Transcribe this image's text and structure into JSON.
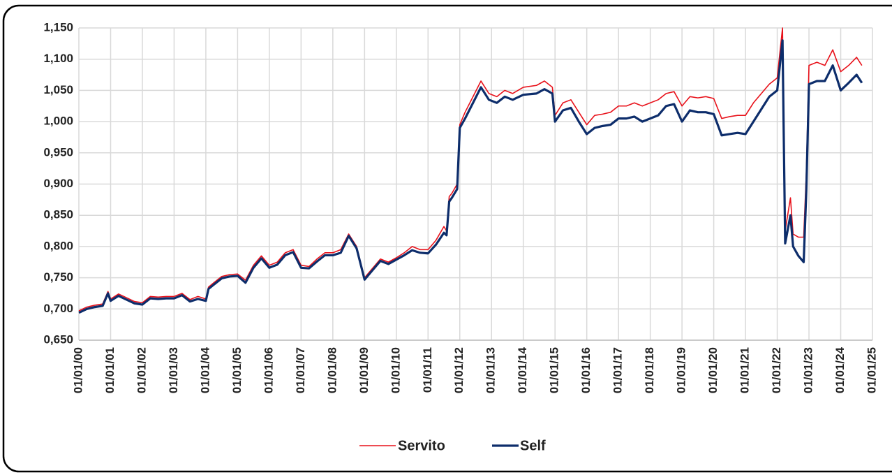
{
  "chart_data": {
    "type": "line",
    "x": [
      "01/01/00",
      "01/04/00",
      "01/07/00",
      "01/10/00",
      "01/12/00",
      "01/01/01",
      "01/04/01",
      "01/07/01",
      "01/10/01",
      "01/01/02",
      "01/04/02",
      "01/07/02",
      "01/10/02",
      "01/01/03",
      "01/04/03",
      "01/07/03",
      "01/10/03",
      "01/01/04",
      "01/02/04",
      "01/04/04",
      "01/07/04",
      "01/10/04",
      "01/01/05",
      "01/04/05",
      "01/07/05",
      "01/10/05",
      "01/01/06",
      "01/04/06",
      "01/07/06",
      "01/10/06",
      "01/01/07",
      "01/04/07",
      "01/07/07",
      "01/10/07",
      "01/01/08",
      "01/04/08",
      "01/07/08",
      "01/10/08",
      "01/01/09",
      "01/04/09",
      "01/07/09",
      "01/10/09",
      "01/01/10",
      "01/04/10",
      "01/07/10",
      "01/10/10",
      "01/01/11",
      "01/04/11",
      "01/07/11",
      "01/08/11",
      "01/09/11",
      "01/10/11",
      "01/12/11",
      "01/01/12",
      "01/03/12",
      "01/06/12",
      "01/09/12",
      "01/12/12",
      "01/03/13",
      "01/06/13",
      "01/09/13",
      "01/01/14",
      "01/06/14",
      "01/09/14",
      "01/12/14",
      "01/01/15",
      "01/04/15",
      "01/07/15",
      "01/10/15",
      "01/01/16",
      "01/04/16",
      "01/07/16",
      "01/10/16",
      "01/01/17",
      "01/04/17",
      "01/07/17",
      "01/10/17",
      "01/01/18",
      "01/04/18",
      "01/07/18",
      "01/10/18",
      "01/01/19",
      "01/04/19",
      "01/07/19",
      "01/10/19",
      "01/01/20",
      "01/04/20",
      "01/07/20",
      "01/10/20",
      "01/01/21",
      "01/04/21",
      "01/07/21",
      "01/10/21",
      "01/01/22",
      "01/03/22",
      "01/04/22",
      "01/06/22",
      "01/07/22",
      "01/09/22",
      "01/11/22",
      "01/12/22",
      "01/01/23",
      "01/04/23",
      "01/07/23",
      "01/10/23",
      "01/01/24",
      "01/04/24",
      "01/07/24",
      "01/09/24"
    ],
    "series": [
      {
        "name": "Servito",
        "color": "#e8111a",
        "values": [
          0.697,
          0.703,
          0.706,
          0.708,
          0.728,
          0.716,
          0.724,
          0.718,
          0.712,
          0.71,
          0.72,
          0.719,
          0.72,
          0.72,
          0.725,
          0.715,
          0.72,
          0.716,
          0.735,
          0.742,
          0.752,
          0.755,
          0.756,
          0.746,
          0.77,
          0.785,
          0.77,
          0.775,
          0.79,
          0.795,
          0.77,
          0.768,
          0.78,
          0.79,
          0.79,
          0.795,
          0.82,
          0.8,
          0.75,
          0.765,
          0.78,
          0.775,
          0.782,
          0.79,
          0.8,
          0.795,
          0.795,
          0.81,
          0.832,
          0.825,
          0.88,
          0.885,
          0.9,
          0.995,
          1.015,
          1.04,
          1.065,
          1.045,
          1.04,
          1.05,
          1.045,
          1.055,
          1.058,
          1.065,
          1.055,
          1.01,
          1.03,
          1.035,
          1.015,
          0.995,
          1.01,
          1.012,
          1.015,
          1.025,
          1.025,
          1.03,
          1.025,
          1.03,
          1.035,
          1.045,
          1.048,
          1.025,
          1.04,
          1.038,
          1.04,
          1.037,
          1.005,
          1.008,
          1.01,
          1.01,
          1.03,
          1.045,
          1.06,
          1.07,
          1.15,
          0.825,
          0.878,
          0.82,
          0.815,
          0.815,
          0.918,
          1.09,
          1.095,
          1.09,
          1.115,
          1.08,
          1.09,
          1.103,
          1.09
        ]
      },
      {
        "name": "Self",
        "color": "#0d2d6b",
        "values": [
          0.694,
          0.7,
          0.703,
          0.705,
          0.725,
          0.713,
          0.721,
          0.715,
          0.709,
          0.707,
          0.717,
          0.716,
          0.717,
          0.717,
          0.722,
          0.712,
          0.716,
          0.713,
          0.732,
          0.739,
          0.749,
          0.752,
          0.753,
          0.742,
          0.766,
          0.781,
          0.766,
          0.771,
          0.786,
          0.791,
          0.766,
          0.765,
          0.776,
          0.786,
          0.786,
          0.79,
          0.817,
          0.797,
          0.747,
          0.762,
          0.777,
          0.772,
          0.779,
          0.786,
          0.794,
          0.79,
          0.789,
          0.803,
          0.822,
          0.818,
          0.872,
          0.878,
          0.892,
          0.99,
          1.005,
          1.03,
          1.055,
          1.035,
          1.03,
          1.04,
          1.035,
          1.043,
          1.045,
          1.052,
          1.045,
          1.0,
          1.018,
          1.022,
          1.0,
          0.98,
          0.99,
          0.993,
          0.995,
          1.005,
          1.005,
          1.008,
          1.0,
          1.005,
          1.01,
          1.025,
          1.028,
          1.0,
          1.018,
          1.015,
          1.015,
          1.012,
          0.978,
          0.98,
          0.982,
          0.98,
          1.0,
          1.02,
          1.04,
          1.05,
          1.13,
          0.805,
          0.85,
          0.8,
          0.785,
          0.775,
          0.89,
          1.06,
          1.065,
          1.065,
          1.09,
          1.05,
          1.062,
          1.075,
          1.062
        ]
      }
    ],
    "xlim": [
      "01/01/00",
      "01/01/25"
    ],
    "xticks": [
      "01/01/00",
      "01/01/01",
      "01/01/02",
      "01/01/03",
      "01/01/04",
      "01/01/05",
      "01/01/06",
      "01/01/07",
      "01/01/08",
      "01/01/09",
      "01/01/10",
      "01/01/11",
      "01/01/12",
      "01/01/13",
      "01/01/14",
      "01/01/15",
      "01/01/16",
      "01/01/17",
      "01/01/18",
      "01/01/19",
      "01/01/20",
      "01/01/21",
      "01/01/22",
      "01/01/23",
      "01/01/24",
      "01/01/25"
    ],
    "ylim": [
      0.65,
      1.15
    ],
    "yticks": [
      {
        "value": 0.65,
        "label": "0,650"
      },
      {
        "value": 0.7,
        "label": "0,700"
      },
      {
        "value": 0.75,
        "label": "0,750"
      },
      {
        "value": 0.8,
        "label": "0,800"
      },
      {
        "value": 0.85,
        "label": "0,850"
      },
      {
        "value": 0.9,
        "label": "0,900"
      },
      {
        "value": 0.95,
        "label": "0,950"
      },
      {
        "value": 1.0,
        "label": "1,000"
      },
      {
        "value": 1.05,
        "label": "1,050"
      },
      {
        "value": 1.1,
        "label": "1,100"
      },
      {
        "value": 1.15,
        "label": "1,150"
      }
    ],
    "grid": true,
    "legend": "bottom"
  }
}
